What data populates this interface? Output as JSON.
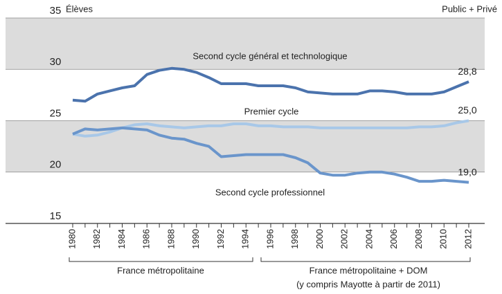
{
  "chart_data": {
    "type": "line",
    "y_label": "Élèves",
    "annotation": "Public + Privé",
    "x": [
      1980,
      1981,
      1982,
      1983,
      1984,
      1985,
      1986,
      1987,
      1988,
      1989,
      1990,
      1991,
      1992,
      1993,
      1994,
      1995,
      1996,
      1997,
      1998,
      1999,
      2000,
      2001,
      2002,
      2003,
      2004,
      2005,
      2006,
      2007,
      2008,
      2009,
      2010,
      2011,
      2012
    ],
    "xlim": [
      1980,
      2012
    ],
    "xticks": [
      1980,
      1982,
      1984,
      1986,
      1988,
      1990,
      1992,
      1994,
      1996,
      1998,
      2000,
      2002,
      2004,
      2006,
      2008,
      2010,
      2012
    ],
    "ylim": [
      15,
      35
    ],
    "yticks": [
      15,
      20,
      25,
      30,
      35
    ],
    "bands": true,
    "periods": [
      "France métropolitaine",
      "France métropolitaine + DOM",
      "(y compris Mayotte à partir de 2011)"
    ],
    "series": [
      {
        "name": "Second cycle général et technologique",
        "color": "#4b73ad",
        "values": [
          27.0,
          26.9,
          27.6,
          27.9,
          28.2,
          28.4,
          29.5,
          29.9,
          30.1,
          30.0,
          29.7,
          29.2,
          28.6,
          28.6,
          28.6,
          28.4,
          28.4,
          28.4,
          28.2,
          27.8,
          27.7,
          27.6,
          27.6,
          27.6,
          27.9,
          27.9,
          27.8,
          27.6,
          27.6,
          27.6,
          27.8,
          28.3,
          28.8
        ],
        "value_labels": [
          null,
          null,
          null,
          null,
          null,
          null,
          null,
          null,
          null,
          null,
          null,
          null,
          null,
          null,
          null,
          null,
          null,
          null,
          null,
          null,
          null,
          null,
          null,
          null,
          null,
          null,
          null,
          null,
          null,
          null,
          null,
          null,
          "28,8"
        ]
      },
      {
        "name": "Premier cycle",
        "color": "#a8c8e8",
        "values": [
          23.7,
          23.5,
          23.6,
          23.9,
          24.3,
          24.6,
          24.7,
          24.5,
          24.4,
          24.3,
          24.4,
          24.5,
          24.5,
          24.7,
          24.7,
          24.5,
          24.5,
          24.4,
          24.4,
          24.4,
          24.3,
          24.3,
          24.3,
          24.3,
          24.3,
          24.3,
          24.3,
          24.3,
          24.4,
          24.4,
          24.5,
          24.8,
          25.0
        ],
        "value_labels": [
          null,
          null,
          null,
          null,
          null,
          null,
          null,
          null,
          null,
          null,
          null,
          null,
          null,
          null,
          null,
          null,
          null,
          null,
          null,
          null,
          null,
          null,
          null,
          null,
          null,
          null,
          null,
          null,
          null,
          null,
          null,
          null,
          "25,0"
        ]
      },
      {
        "name": "Second cycle professionnel",
        "color": "#6a95cb",
        "values": [
          23.7,
          24.2,
          24.1,
          24.2,
          24.3,
          24.2,
          24.1,
          23.6,
          23.3,
          23.2,
          22.8,
          22.5,
          21.5,
          21.6,
          21.7,
          21.7,
          21.7,
          21.7,
          21.4,
          20.9,
          19.9,
          19.7,
          19.7,
          19.9,
          20.0,
          20.0,
          19.8,
          19.5,
          19.1,
          19.1,
          19.2,
          19.1,
          19.0
        ],
        "value_labels": [
          null,
          null,
          null,
          null,
          null,
          null,
          null,
          null,
          null,
          null,
          null,
          null,
          null,
          null,
          null,
          null,
          null,
          null,
          null,
          null,
          null,
          null,
          null,
          null,
          null,
          null,
          null,
          null,
          null,
          null,
          null,
          null,
          "19,0"
        ]
      }
    ]
  }
}
